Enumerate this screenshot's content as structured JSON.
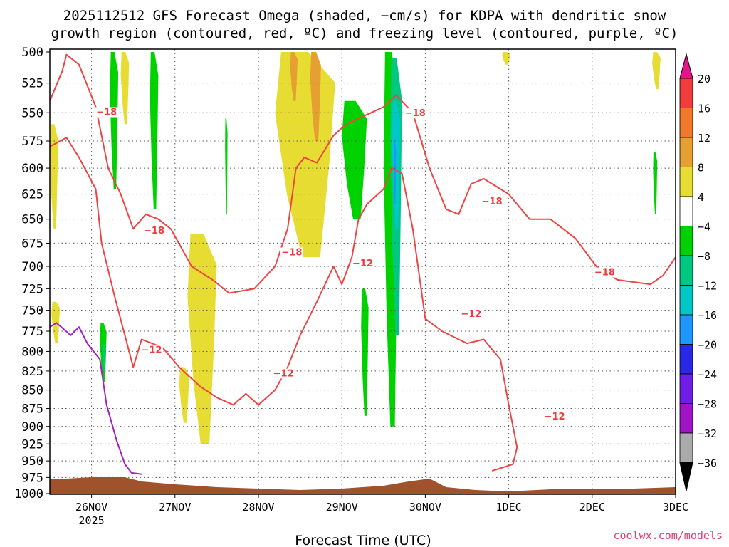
{
  "title": {
    "line1": "2025112512 GFS Forecast Omega (shaded, −cm/s) for KDPA with dendritic snow",
    "line2": "growth region (contoured, red, ºC) and freezing level (contoured, purple, ºC)"
  },
  "credit": "coolwx.com/models",
  "chart_data": {
    "type": "heatmap",
    "xlabel": "Forecast Time (UTC)",
    "ylabel": "",
    "x_ticks": [
      {
        "t": 0.5,
        "label": "26NOV",
        "sub": "2025"
      },
      {
        "t": 1.5,
        "label": "27NOV",
        "sub": ""
      },
      {
        "t": 2.5,
        "label": "28NOV",
        "sub": ""
      },
      {
        "t": 3.5,
        "label": "29NOV",
        "sub": ""
      },
      {
        "t": 4.5,
        "label": "30NOV",
        "sub": ""
      },
      {
        "t": 5.5,
        "label": "1DEC",
        "sub": ""
      },
      {
        "t": 6.5,
        "label": "2DEC",
        "sub": ""
      },
      {
        "t": 7.5,
        "label": "3DEC",
        "sub": ""
      }
    ],
    "xlim": [
      0,
      7.5
    ],
    "y_ticks": [
      500,
      525,
      550,
      575,
      600,
      625,
      650,
      675,
      700,
      725,
      750,
      775,
      800,
      825,
      850,
      875,
      900,
      925,
      950,
      975,
      1000
    ],
    "ylim": [
      500,
      1000
    ],
    "y_scale": "log-pressure",
    "grid": true,
    "colorbar": {
      "labels": [
        "20",
        "16",
        "12",
        "8",
        "4",
        "−4",
        "−8",
        "−12",
        "−16",
        "−20",
        "−24",
        "−28",
        "−32",
        "−36"
      ],
      "levels": [
        {
          "from": 16,
          "to": 20,
          "color": "#f03c3c"
        },
        {
          "from": 12,
          "to": 16,
          "color": "#f07828"
        },
        {
          "from": 8,
          "to": 12,
          "color": "#e6a032"
        },
        {
          "from": 4,
          "to": 8,
          "color": "#e6dc32"
        },
        {
          "from": -4,
          "to": 4,
          "color": "#ffffff"
        },
        {
          "from": -8,
          "to": -4,
          "color": "#00d200"
        },
        {
          "from": -12,
          "to": -8,
          "color": "#00c882"
        },
        {
          "from": -16,
          "to": -12,
          "color": "#00c8c8"
        },
        {
          "from": -20,
          "to": -16,
          "color": "#1e96ff"
        },
        {
          "from": -24,
          "to": -20,
          "color": "#2828e6"
        },
        {
          "from": -28,
          "to": -24,
          "color": "#6e1ee6"
        },
        {
          "from": -32,
          "to": -28,
          "color": "#a014c8"
        },
        {
          "from": -36,
          "to": -32,
          "color": "#aaaaaa"
        }
      ],
      "over_color": "#e6148c",
      "under_color": "#000000"
    },
    "shaded_regions": [
      {
        "level": 6,
        "color": "#e6dc32",
        "t0": 0.0,
        "t1": 0.1,
        "p_top": 560,
        "p_bot": 660
      },
      {
        "level": 6,
        "color": "#e6dc32",
        "t0": 0.02,
        "t1": 0.12,
        "p_top": 740,
        "p_bot": 790
      },
      {
        "level": -6,
        "color": "#00d200",
        "t0": 0.72,
        "t1": 0.82,
        "p_top": 500,
        "p_bot": 620
      },
      {
        "level": 6,
        "color": "#e6dc32",
        "t0": 0.85,
        "t1": 0.95,
        "p_top": 500,
        "p_bot": 560
      },
      {
        "level": -6,
        "color": "#00d200",
        "t0": 1.2,
        "t1": 1.3,
        "p_top": 500,
        "p_bot": 640
      },
      {
        "level": -6,
        "color": "#00d200",
        "t0": 0.6,
        "t1": 0.68,
        "p_top": 765,
        "p_bot": 840
      },
      {
        "level": -10,
        "color": "#00c882",
        "t0": 0.63,
        "t1": 0.67,
        "p_top": 790,
        "p_bot": 825
      },
      {
        "level": 6,
        "color": "#e6dc32",
        "t0": 1.65,
        "t1": 2.0,
        "p_top": 665,
        "p_bot": 925
      },
      {
        "level": 6,
        "color": "#e6dc32",
        "t0": 1.55,
        "t1": 1.67,
        "p_top": 820,
        "p_bot": 895
      },
      {
        "level": -6,
        "color": "#00d200",
        "t0": 2.1,
        "t1": 2.13,
        "p_top": 555,
        "p_bot": 645
      },
      {
        "level": 6,
        "color": "#e6dc32",
        "t0": 2.7,
        "t1": 3.42,
        "p_top": 500,
        "p_bot": 690
      },
      {
        "level": 10,
        "color": "#e6a032",
        "t0": 2.88,
        "t1": 2.97,
        "p_top": 500,
        "p_bot": 540
      },
      {
        "level": 10,
        "color": "#e6a032",
        "t0": 3.12,
        "t1": 3.25,
        "p_top": 500,
        "p_bot": 575
      },
      {
        "level": -6,
        "color": "#00d200",
        "t0": 3.5,
        "t1": 3.8,
        "p_top": 540,
        "p_bot": 650
      },
      {
        "level": -6,
        "color": "#00d200",
        "t0": 3.73,
        "t1": 3.82,
        "p_top": 725,
        "p_bot": 885
      },
      {
        "level": -6,
        "color": "#00d200",
        "t0": 4.0,
        "t1": 4.18,
        "p_top": 500,
        "p_bot": 900
      },
      {
        "level": -10,
        "color": "#00c882",
        "t0": 4.08,
        "t1": 4.22,
        "p_top": 505,
        "p_bot": 780
      },
      {
        "level": -14,
        "color": "#00c8c8",
        "t0": 4.1,
        "t1": 4.2,
        "p_top": 540,
        "p_bot": 660
      },
      {
        "level": -18,
        "color": "#1e96ff",
        "t0": 4.12,
        "t1": 4.15,
        "p_top": 575,
        "p_bot": 635
      },
      {
        "level": 6,
        "color": "#e6dc32",
        "t0": 5.42,
        "t1": 5.52,
        "p_top": 500,
        "p_bot": 510
      },
      {
        "level": -6,
        "color": "#00d200",
        "t0": 7.23,
        "t1": 7.28,
        "p_top": 585,
        "p_bot": 645
      },
      {
        "level": 6,
        "color": "#e6dc32",
        "t0": 7.22,
        "t1": 7.32,
        "p_top": 500,
        "p_bot": 530
      }
    ],
    "series": [
      {
        "name": "",
        "color": "#ee4444",
        "kind": "contour-18",
        "points": [
          [
            0.0,
            580
          ],
          [
            0.2,
            572
          ],
          [
            0.35,
            590
          ],
          [
            0.55,
            620
          ],
          [
            0.62,
            675
          ],
          [
            0.78,
            735
          ],
          [
            1.0,
            820
          ],
          [
            1.1,
            785
          ],
          [
            1.35,
            795
          ],
          [
            1.55,
            820
          ],
          [
            1.8,
            845
          ],
          [
            2.0,
            860
          ],
          [
            2.2,
            870
          ],
          [
            2.35,
            855
          ],
          [
            2.5,
            870
          ],
          [
            2.7,
            850
          ],
          [
            2.85,
            820
          ],
          [
            3.0,
            780
          ],
          [
            3.2,
            740
          ],
          [
            3.4,
            700
          ],
          [
            3.5,
            720
          ],
          [
            3.62,
            690
          ],
          [
            3.7,
            650
          ],
          [
            3.8,
            635
          ],
          [
            4.0,
            620
          ],
          [
            4.1,
            600
          ],
          [
            4.22,
            605
          ],
          [
            4.35,
            660
          ],
          [
            4.5,
            760
          ],
          [
            4.7,
            775
          ],
          [
            5.0,
            790
          ],
          [
            5.2,
            785
          ],
          [
            5.4,
            810
          ],
          [
            5.5,
            870
          ],
          [
            5.6,
            930
          ],
          [
            5.55,
            955
          ],
          [
            5.3,
            965
          ]
        ]
      },
      {
        "name": "",
        "color": "#ee4444",
        "kind": "contour-18-upper",
        "points": [
          [
            0.0,
            540
          ],
          [
            0.15,
            515
          ],
          [
            0.2,
            502
          ],
          [
            0.35,
            510
          ],
          [
            0.55,
            545
          ],
          [
            0.7,
            600
          ],
          [
            0.85,
            625
          ],
          [
            1.0,
            660
          ],
          [
            1.15,
            645
          ],
          [
            1.3,
            650
          ],
          [
            1.45,
            660
          ],
          [
            1.7,
            700
          ],
          [
            1.95,
            715
          ],
          [
            2.15,
            730
          ],
          [
            2.45,
            725
          ],
          [
            2.7,
            700
          ],
          [
            2.85,
            660
          ],
          [
            2.95,
            600
          ],
          [
            3.05,
            590
          ],
          [
            3.2,
            595
          ],
          [
            3.4,
            570
          ],
          [
            3.55,
            560
          ],
          [
            3.7,
            555
          ],
          [
            3.85,
            550
          ],
          [
            4.0,
            545
          ],
          [
            4.15,
            535
          ],
          [
            4.35,
            550
          ],
          [
            4.55,
            600
          ],
          [
            4.75,
            640
          ],
          [
            4.9,
            645
          ],
          [
            5.05,
            615
          ],
          [
            5.2,
            610
          ],
          [
            5.5,
            625
          ],
          [
            5.75,
            650
          ],
          [
            6.0,
            650
          ],
          [
            6.3,
            670
          ],
          [
            6.55,
            700
          ],
          [
            6.8,
            715
          ],
          [
            7.2,
            720
          ],
          [
            7.35,
            710
          ],
          [
            7.5,
            690
          ]
        ]
      },
      {
        "name": "",
        "color": "#a020c8",
        "kind": "freezing-level",
        "points": [
          [
            0.0,
            770
          ],
          [
            0.08,
            765
          ],
          [
            0.25,
            780
          ],
          [
            0.35,
            770
          ],
          [
            0.45,
            790
          ],
          [
            0.6,
            810
          ],
          [
            0.68,
            870
          ],
          [
            0.8,
            920
          ],
          [
            0.9,
            955
          ],
          [
            0.98,
            968
          ],
          [
            1.1,
            970
          ]
        ]
      }
    ],
    "contour_labels": [
      {
        "text": "−18",
        "t": 0.68,
        "p": 552
      },
      {
        "text": "−18",
        "t": 1.25,
        "p": 665
      },
      {
        "text": "−18",
        "t": 2.9,
        "p": 688
      },
      {
        "text": "−12",
        "t": 3.75,
        "p": 700
      },
      {
        "text": "−18",
        "t": 4.38,
        "p": 553
      },
      {
        "text": "−18",
        "t": 5.3,
        "p": 635
      },
      {
        "text": "−18",
        "t": 6.65,
        "p": 710
      },
      {
        "text": "−12",
        "t": 1.22,
        "p": 802
      },
      {
        "text": "−12",
        "t": 2.8,
        "p": 832
      },
      {
        "text": "−12",
        "t": 5.05,
        "p": 758
      },
      {
        "text": "−12",
        "t": 6.05,
        "p": 890
      }
    ]
  }
}
